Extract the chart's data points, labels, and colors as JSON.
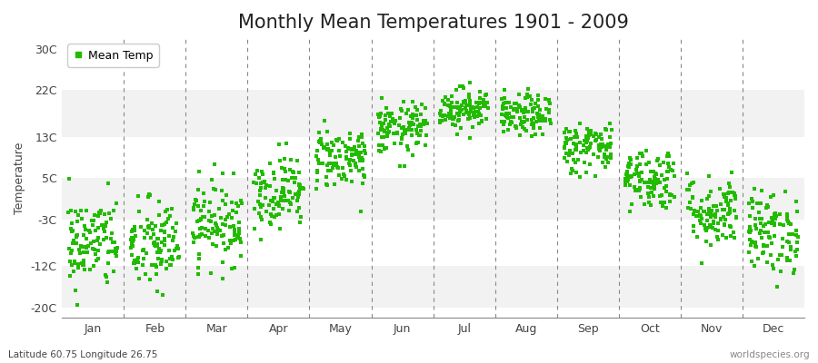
{
  "title": "Monthly Mean Temperatures 1901 - 2009",
  "ylabel": "Temperature",
  "subtitle_left": "Latitude 60.75 Longitude 26.75",
  "subtitle_right": "worldspecies.org",
  "legend_label": "Mean Temp",
  "marker_color": "#22BB00",
  "background_color": "#FFFFFF",
  "band_colors_alt": [
    "#F2F2F2",
    "#FFFFFF"
  ],
  "yticks": [
    -20,
    -12,
    -3,
    5,
    13,
    22,
    30
  ],
  "ytick_labels": [
    "-20C",
    "-12C",
    "-3C",
    "5C",
    "13C",
    "22C",
    "30C"
  ],
  "ylim": [
    -22,
    32
  ],
  "months": [
    "Jan",
    "Feb",
    "Mar",
    "Apr",
    "May",
    "Jun",
    "Jul",
    "Aug",
    "Sep",
    "Oct",
    "Nov",
    "Dec"
  ],
  "monthly_mean_temps": [
    -7.5,
    -8.0,
    -3.5,
    2.5,
    9.0,
    14.5,
    18.5,
    17.0,
    11.0,
    5.0,
    -1.5,
    -5.5
  ],
  "monthly_std_temps": [
    4.5,
    4.5,
    4.0,
    3.5,
    3.0,
    2.5,
    2.0,
    2.0,
    2.5,
    3.0,
    3.5,
    4.0
  ],
  "n_years": 109,
  "title_fontsize": 15,
  "axis_fontsize": 9,
  "label_fontsize": 9
}
